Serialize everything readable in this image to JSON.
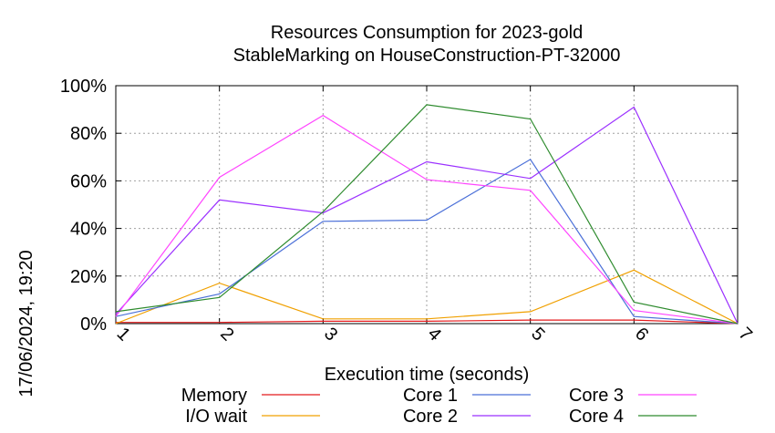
{
  "chart_data": {
    "type": "line",
    "title_line1": "Resources Consumption for 2023-gold",
    "title_line2": "StableMarking on HouseConstruction-PT-32000",
    "xlabel": "Execution time (seconds)",
    "ylabel": "",
    "side_label": "17/06/2024, 19:20",
    "x": [
      1,
      2,
      3,
      4,
      5,
      6,
      7
    ],
    "x_ticks": [
      "1",
      "2",
      "3",
      "4",
      "5",
      "6",
      "7"
    ],
    "xlim": [
      1,
      7
    ],
    "ylim": [
      0,
      100
    ],
    "y_ticks": [
      "0%",
      "20%",
      "40%",
      "60%",
      "80%",
      "100%"
    ],
    "grid": true,
    "legend_placement": "bottom",
    "series": [
      {
        "name": "Memory",
        "color": "#e41a1c",
        "values": [
          0.5,
          0.5,
          1,
          1,
          1.5,
          1.5,
          0
        ]
      },
      {
        "name": "I/O wait",
        "color": "#f0a000",
        "values": [
          0,
          17,
          2,
          2,
          5,
          22.5,
          0
        ]
      },
      {
        "name": "Core 1",
        "color": "#4a6fd8",
        "values": [
          3,
          12.5,
          43,
          43.5,
          69,
          3,
          0
        ]
      },
      {
        "name": "Core 2",
        "color": "#9b30ff",
        "values": [
          4,
          52,
          46.5,
          68,
          61,
          91,
          0
        ]
      },
      {
        "name": "Core 3",
        "color": "#ff44ff",
        "values": [
          3,
          61.5,
          87.5,
          60.5,
          56,
          5.5,
          0
        ]
      },
      {
        "name": "Core 4",
        "color": "#2e8b2e",
        "values": [
          5,
          11,
          47,
          92,
          86,
          9,
          0
        ]
      }
    ]
  }
}
